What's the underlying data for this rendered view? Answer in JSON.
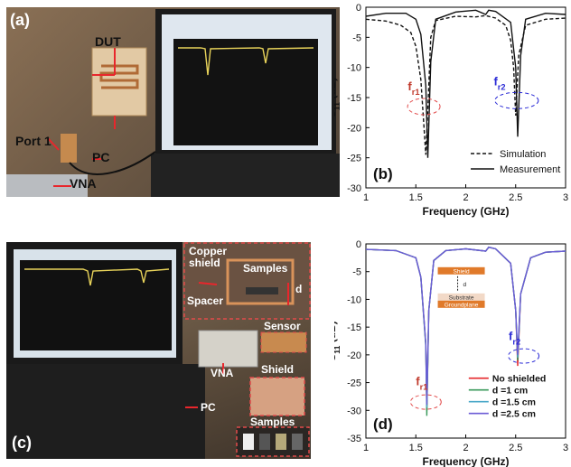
{
  "panel_a": {
    "label": "(a)",
    "annotations": {
      "dut": "DUT",
      "port1": "Port 1",
      "pc": "PC",
      "vna": "VNA"
    }
  },
  "panel_c": {
    "label": "(c)",
    "annotations": {
      "copper_shield": "Copper shield",
      "samples_top": "Samples",
      "d": "d",
      "spacer": "Spacer",
      "sensor": "Sensor",
      "vna": "VNA",
      "shield": "Shield",
      "pc": "PC",
      "samples_bottom": "Samples"
    }
  },
  "colors": {
    "annotation_red": "#e8262c",
    "dashed_box": "#e24a4a",
    "copper": "#c9824a"
  },
  "chart_data": [
    {
      "type": "line",
      "panel_label": "(b)",
      "xlabel": "Frequency (GHz)",
      "ylabel": "S11 (dB)",
      "xlim": [
        1,
        3
      ],
      "ylim": [
        -30,
        0
      ],
      "xticks": [
        "1",
        "1.5",
        "2",
        "2.5",
        "3"
      ],
      "yticks": [
        "0",
        "-5",
        "-10",
        "-15",
        "-20",
        "-25",
        "-30"
      ],
      "legend_position": "bottom-right",
      "annotations": [
        {
          "text": "fr1",
          "color": "#c0392b"
        },
        {
          "text": "fr2",
          "color": "#2b2bd6"
        }
      ],
      "series": [
        {
          "name": "Simulation",
          "style": "dashed",
          "color": "#111111",
          "x": [
            1.0,
            1.2,
            1.35,
            1.45,
            1.5,
            1.55,
            1.6,
            1.62,
            1.65,
            1.7,
            1.9,
            2.1,
            2.2,
            2.3,
            2.4,
            2.45,
            2.48,
            2.5,
            2.53,
            2.6,
            2.8,
            3.0
          ],
          "y": [
            -2.0,
            -2.3,
            -3.0,
            -4.2,
            -6.5,
            -12.0,
            -24.5,
            -17.0,
            -5.0,
            -2.2,
            -1.5,
            -1.6,
            -1.4,
            -1.8,
            -3.0,
            -5.5,
            -10.0,
            -18.0,
            -8.0,
            -3.0,
            -2.0,
            -1.8
          ]
        },
        {
          "name": "Measurement",
          "style": "solid",
          "color": "#111111",
          "x": [
            1.0,
            1.2,
            1.4,
            1.5,
            1.55,
            1.6,
            1.62,
            1.65,
            1.7,
            1.9,
            2.1,
            2.2,
            2.23,
            2.3,
            2.45,
            2.5,
            2.52,
            2.55,
            2.6,
            2.8,
            3.0
          ],
          "y": [
            -1.5,
            -1.0,
            -1.0,
            -2.0,
            -4.5,
            -13.0,
            -25.0,
            -9.0,
            -2.0,
            -0.8,
            -0.5,
            -1.2,
            -0.5,
            -0.7,
            -2.5,
            -10.0,
            -21.5,
            -8.0,
            -2.0,
            -1.0,
            -1.2
          ]
        }
      ]
    },
    {
      "type": "line",
      "panel_label": "(d)",
      "xlabel": "Frequency (GHz)",
      "ylabel": "S11 (dB)",
      "xlim": [
        1,
        3
      ],
      "ylim": [
        -35,
        0
      ],
      "xticks": [
        "1",
        "1.5",
        "2",
        "2.5",
        "3"
      ],
      "yticks": [
        "0",
        "-5",
        "-10",
        "-15",
        "-20",
        "-25",
        "-30",
        "-35"
      ],
      "legend_position": "bottom-right",
      "annotations": [
        {
          "text": "fr1",
          "color": "#c0392b"
        },
        {
          "text": "fr2",
          "color": "#2b2bd6"
        }
      ],
      "inset_labels": [
        "Shield",
        "d",
        "Substrate",
        "Groundplane"
      ],
      "series": [
        {
          "name": "No shielded",
          "color": "#e5262a",
          "x": [
            1.0,
            1.3,
            1.5,
            1.55,
            1.6,
            1.61,
            1.63,
            1.68,
            1.8,
            2.0,
            2.2,
            2.23,
            2.3,
            2.45,
            2.5,
            2.52,
            2.55,
            2.65,
            2.8,
            3.0
          ],
          "y": [
            -1.0,
            -1.2,
            -2.5,
            -6.0,
            -18.0,
            -30.0,
            -12.0,
            -3.0,
            -1.2,
            -0.9,
            -1.3,
            -0.6,
            -0.9,
            -3.5,
            -12.0,
            -22.0,
            -9.0,
            -2.5,
            -1.5,
            -1.3
          ]
        },
        {
          "name": "d =1 cm",
          "color": "#3a9a5b",
          "x": [
            1.0,
            1.3,
            1.5,
            1.55,
            1.6,
            1.61,
            1.63,
            1.68,
            1.8,
            2.0,
            2.2,
            2.23,
            2.3,
            2.45,
            2.5,
            2.52,
            2.55,
            2.65,
            2.8,
            3.0
          ],
          "y": [
            -1.0,
            -1.2,
            -2.5,
            -6.0,
            -18.5,
            -31.0,
            -12.0,
            -3.0,
            -1.2,
            -0.9,
            -1.3,
            -0.6,
            -0.9,
            -3.5,
            -12.0,
            -21.0,
            -9.0,
            -2.5,
            -1.5,
            -1.3
          ]
        },
        {
          "name": "d =1.5 cm",
          "color": "#4aa8c8",
          "x": [
            1.0,
            1.3,
            1.5,
            1.55,
            1.6,
            1.61,
            1.63,
            1.68,
            1.8,
            2.0,
            2.2,
            2.23,
            2.3,
            2.45,
            2.5,
            2.52,
            2.55,
            2.65,
            2.8,
            3.0
          ],
          "y": [
            -1.0,
            -1.2,
            -2.5,
            -6.0,
            -18.0,
            -29.5,
            -12.0,
            -3.0,
            -1.2,
            -0.9,
            -1.3,
            -0.6,
            -0.9,
            -3.5,
            -12.0,
            -20.5,
            -9.0,
            -2.5,
            -1.5,
            -1.3
          ]
        },
        {
          "name": "d =2.5 cm",
          "color": "#6b5bd6",
          "x": [
            1.0,
            1.3,
            1.5,
            1.55,
            1.6,
            1.61,
            1.63,
            1.68,
            1.8,
            2.0,
            2.2,
            2.23,
            2.3,
            2.45,
            2.5,
            2.52,
            2.55,
            2.65,
            2.8,
            3.0
          ],
          "y": [
            -1.0,
            -1.2,
            -2.5,
            -6.0,
            -18.0,
            -29.0,
            -12.0,
            -3.0,
            -1.2,
            -0.9,
            -1.3,
            -0.6,
            -0.9,
            -3.5,
            -12.0,
            -20.0,
            -9.0,
            -2.5,
            -1.5,
            -1.3
          ]
        }
      ]
    }
  ]
}
